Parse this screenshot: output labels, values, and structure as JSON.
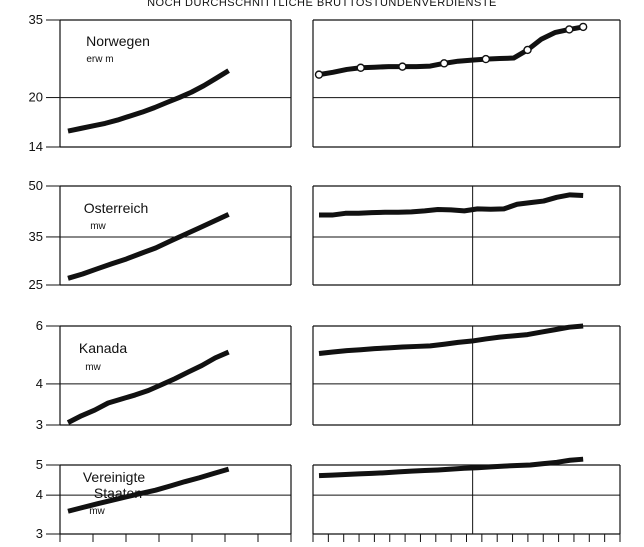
{
  "title": "NOCH DURCHSCHNITTLICHE BRUTTOSTUNDENVERDIENSTE",
  "chart_data": [
    {
      "type": "line",
      "panel": "Norwegen",
      "label": "Norwegen",
      "unit": "erw m",
      "yscale": "log",
      "ylim": [
        14,
        35
      ],
      "yticks": [
        14,
        20,
        35
      ],
      "markers_right": true,
      "left_series": [
        15.7,
        16.0,
        16.3,
        16.6,
        17.0,
        17.5,
        18.0,
        18.6,
        19.3,
        20.0,
        20.8,
        21.8,
        23.0,
        24.3
      ],
      "right_series": [
        23.6,
        24.0,
        24.5,
        24.8,
        24.9,
        25.0,
        25.0,
        25.0,
        25.1,
        25.6,
        26.0,
        26.2,
        26.4,
        26.5,
        26.6,
        28.2,
        30.5,
        32.0,
        32.7,
        33.3
      ]
    },
    {
      "type": "line",
      "panel": "Osterreich",
      "label": "Osterreich",
      "unit": "mw",
      "yscale": "log",
      "ylim": [
        25,
        50
      ],
      "yticks": [
        25,
        35,
        50
      ],
      "left_series": [
        26.2,
        27.0,
        28.0,
        29.0,
        30.0,
        31.2,
        32.4,
        34.0,
        35.6,
        37.3,
        39.1,
        41.0
      ],
      "right_series": [
        40.8,
        40.8,
        41.3,
        41.3,
        41.5,
        41.6,
        41.6,
        41.7,
        42.0,
        42.4,
        42.3,
        42.0,
        42.6,
        42.5,
        42.6,
        44.0,
        44.5,
        45.0,
        46.2,
        47.0,
        46.8
      ]
    },
    {
      "type": "line",
      "panel": "Kanada",
      "label": "Kanada",
      "unit": "mw",
      "yscale": "log",
      "ylim": [
        3,
        6
      ],
      "yticks": [
        3,
        4,
        6
      ],
      "left_series": [
        3.05,
        3.2,
        3.33,
        3.5,
        3.6,
        3.7,
        3.82,
        3.98,
        4.15,
        4.35,
        4.55,
        4.8,
        5.0
      ],
      "right_series": [
        4.95,
        5.0,
        5.05,
        5.08,
        5.12,
        5.15,
        5.18,
        5.2,
        5.22,
        5.28,
        5.35,
        5.4,
        5.48,
        5.55,
        5.6,
        5.65,
        5.75,
        5.85,
        5.95,
        6.0
      ]
    },
    {
      "type": "line",
      "panel": "Vereinigte Staaten",
      "label": "Vereinigte Staaten",
      "unit": "mw",
      "yscale": "log",
      "ylim": [
        3,
        5
      ],
      "yticks": [
        3,
        4,
        5
      ],
      "left_series": [
        3.55,
        3.65,
        3.75,
        3.85,
        3.95,
        4.05,
        4.15,
        4.28,
        4.42,
        4.55,
        4.7,
        4.85
      ],
      "right_series": [
        4.62,
        4.64,
        4.66,
        4.68,
        4.7,
        4.72,
        4.75,
        4.78,
        4.8,
        4.82,
        4.85,
        4.88,
        4.9,
        4.93,
        4.96,
        4.98,
        5.0,
        5.05,
        5.1,
        5.18,
        5.22
      ]
    }
  ]
}
